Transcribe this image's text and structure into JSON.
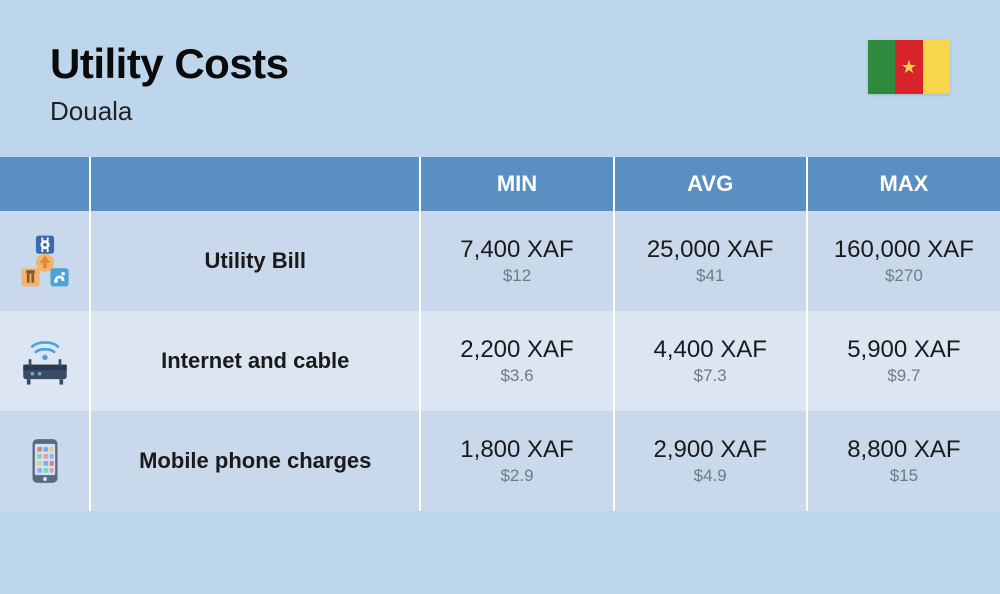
{
  "colors": {
    "page_bg": "#bdd6ec",
    "header_th_bg": "#5a8fc2",
    "header_th_text": "#ffffff",
    "row_even_bg": "#c9d8ea",
    "row_odd_bg": "#dbe6f2",
    "cell_border": "#ffffff",
    "title_color": "#0a0a0a",
    "subtitle_color": "#222222",
    "primary_text": "#1a1a1a",
    "secondary_text": "#6e7a87",
    "flag_green": "#2e8b3d",
    "flag_red": "#d8232a",
    "flag_yellow": "#f7d64a",
    "flag_star": "#f7d64a"
  },
  "header": {
    "title": "Utility Costs",
    "subtitle": "Douala"
  },
  "table": {
    "columns": [
      "",
      "",
      "MIN",
      "AVG",
      "MAX"
    ],
    "rows": [
      {
        "icon": "utility",
        "label": "Utility Bill",
        "min": {
          "primary": "7,400 XAF",
          "secondary": "$12"
        },
        "avg": {
          "primary": "25,000 XAF",
          "secondary": "$41"
        },
        "max": {
          "primary": "160,000 XAF",
          "secondary": "$270"
        }
      },
      {
        "icon": "router",
        "label": "Internet and cable",
        "min": {
          "primary": "2,200 XAF",
          "secondary": "$3.6"
        },
        "avg": {
          "primary": "4,400 XAF",
          "secondary": "$7.3"
        },
        "max": {
          "primary": "5,900 XAF",
          "secondary": "$9.7"
        }
      },
      {
        "icon": "phone",
        "label": "Mobile phone charges",
        "min": {
          "primary": "1,800 XAF",
          "secondary": "$2.9"
        },
        "avg": {
          "primary": "2,900 XAF",
          "secondary": "$4.9"
        },
        "max": {
          "primary": "8,800 XAF",
          "secondary": "$15"
        }
      }
    ]
  }
}
